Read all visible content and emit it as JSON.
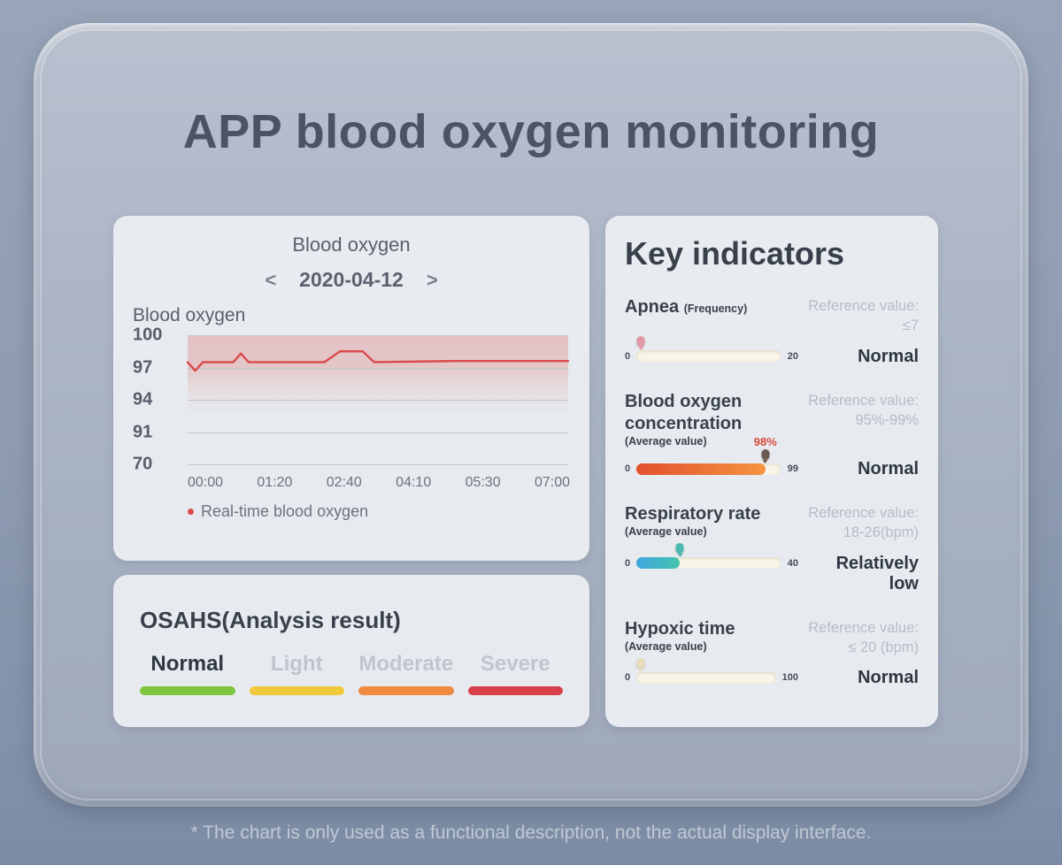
{
  "page": {
    "title": "APP blood oxygen monitoring",
    "disclaimer": "* The chart is only used as a functional description, not the actual display interface."
  },
  "blood_oxygen_panel": {
    "title": "Blood oxygen",
    "prev_arrow": "<",
    "next_arrow": ">",
    "date": "2020-04-12",
    "axis_title": "Blood oxygen",
    "legend": "Real-time blood oxygen"
  },
  "chart_data": {
    "type": "line",
    "title": "Blood oxygen",
    "series_name": "Real-time blood oxygen",
    "line_color": "#d94a4a",
    "y_ticks": [
      "100",
      "97",
      "94",
      "91",
      "70"
    ],
    "x_labels": [
      "00:00",
      "01:20",
      "02:40",
      "04:10",
      "05:30",
      "07:00"
    ],
    "grid": true,
    "band_range": [
      97,
      100
    ],
    "points": [
      [
        0,
        97.5
      ],
      [
        2,
        96.7
      ],
      [
        4,
        97.5
      ],
      [
        12,
        97.5
      ],
      [
        14,
        98.3
      ],
      [
        16,
        97.5
      ],
      [
        36,
        97.5
      ],
      [
        40,
        98.5
      ],
      [
        46,
        98.5
      ],
      [
        49,
        97.5
      ],
      [
        70,
        97.6
      ],
      [
        100,
        97.6
      ]
    ]
  },
  "osahs": {
    "title": "OSAHS(Analysis result)",
    "result": "Normal",
    "items": [
      {
        "label": "Normal",
        "color": "#7dc63f",
        "active": true
      },
      {
        "label": "Light",
        "color": "#f2c83b",
        "active": false
      },
      {
        "label": "Moderate",
        "color": "#ef8a3e",
        "active": false
      },
      {
        "label": "Severe",
        "color": "#d84049",
        "active": false
      }
    ]
  },
  "key_indicators": {
    "title": "Key indicators",
    "items": [
      {
        "name": "Apnea",
        "suffix": "(Frequency)",
        "reference_label": "Reference value:",
        "reference_value": "≤7",
        "min": "0",
        "max": "20",
        "value_label": "",
        "fill_percent": 0,
        "fill_gradient": [
          "",
          ""
        ],
        "marker_percent": 3,
        "marker_color": "#e298a6",
        "status": "Normal"
      },
      {
        "name": "Blood oxygen concentration",
        "suffix": "(Average value)",
        "reference_label": "Reference value:",
        "reference_value": "95%-99%",
        "min": "0",
        "max": "99",
        "value_label": "98%",
        "fill_percent": 89,
        "fill_gradient": [
          "#e2512e",
          "#f49440"
        ],
        "marker_percent": 89,
        "marker_color": "#6b5a50",
        "status": "Normal"
      },
      {
        "name": "Respiratory rate",
        "suffix": "(Average value)",
        "reference_label": "Reference value:",
        "reference_value": "18-26(bpm)",
        "min": "0",
        "max": "40",
        "value_label": "",
        "fill_percent": 30,
        "fill_gradient": [
          "#3fa5e0",
          "#45c4ad"
        ],
        "marker_percent": 30,
        "marker_color": "#4ab8ae",
        "status": "Relatively low"
      },
      {
        "name": "Hypoxic time",
        "suffix": "(Average value)",
        "reference_label": "Reference value:",
        "reference_value": "≤ 20 (bpm)",
        "min": "0",
        "max": "100",
        "value_label": "",
        "fill_percent": 0,
        "fill_gradient": [
          "",
          ""
        ],
        "marker_percent": 3,
        "marker_color": "#e8dcba",
        "status": "Normal"
      }
    ]
  }
}
